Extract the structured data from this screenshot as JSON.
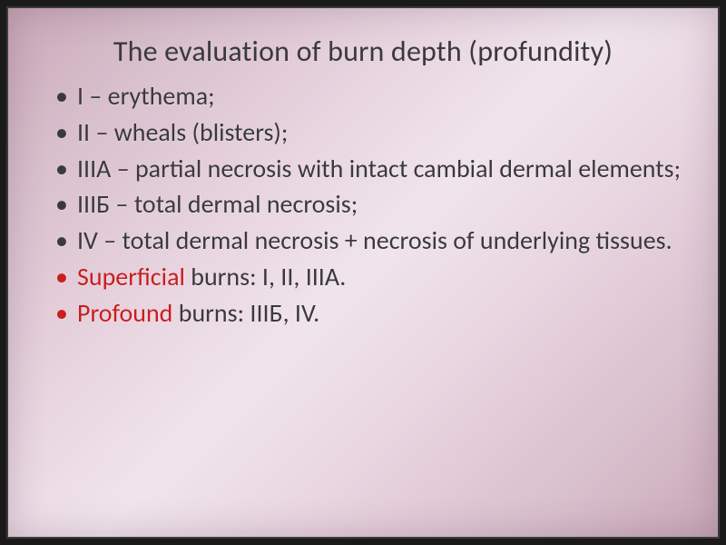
{
  "slide": {
    "title": "The evaluation of burn depth (profundity)",
    "background_gradient": [
      "#c8a8b8",
      "#d8bfcc",
      "#e8d5e0",
      "#f0e4ec",
      "#e8d5e0",
      "#d8bfcc",
      "#c8a8b8"
    ],
    "frame_color": "#1a1a1a",
    "title_fontsize": 32,
    "title_color": "#3a3a3a",
    "body_fontsize": 28,
    "body_color": "#3a3a3a",
    "accent_color": "#c81e1e",
    "bullets": [
      {
        "text": "I – erythema;",
        "bullet_color": "#3a3a3a",
        "spans": [
          {
            "text": "I – erythema;",
            "color": "#3a3a3a"
          }
        ]
      },
      {
        "text": "II – wheals (blisters);",
        "bullet_color": "#3a3a3a",
        "spans": [
          {
            "text": "II – wheals (blisters);",
            "color": "#3a3a3a"
          }
        ]
      },
      {
        "text": "IIIА – partial necrosis with intact cambial dermal elements;",
        "bullet_color": "#3a3a3a",
        "spans": [
          {
            "text": "IIIА – partial necrosis with intact cambial dermal elements;",
            "color": "#3a3a3a"
          }
        ]
      },
      {
        "text": "IIIБ – total dermal necrosis;",
        "bullet_color": "#3a3a3a",
        "spans": [
          {
            "text": "IIIБ – total dermal necrosis;",
            "color": "#3a3a3a"
          }
        ]
      },
      {
        "text": "IV – total dermal necrosis + necrosis of underlying tissues.",
        "bullet_color": "#3a3a3a",
        "spans": [
          {
            "text": "IV – total dermal necrosis + necrosis of underlying tissues.",
            "color": "#3a3a3a"
          }
        ]
      },
      {
        "text": "Superficial burns: I, II, IIIA.",
        "bullet_color": "#c81e1e",
        "spans": [
          {
            "text": "Superficial ",
            "color": "#c81e1e"
          },
          {
            "text": "burns: I, II, IIIA.",
            "color": "#3a3a3a"
          }
        ]
      },
      {
        "text": "Profound burns: IIIБ, IV.",
        "bullet_color": "#c81e1e",
        "spans": [
          {
            "text": "Profound ",
            "color": "#c81e1e"
          },
          {
            "text": "burns: IIIБ, IV.",
            "color": "#3a3a3a"
          }
        ]
      }
    ]
  }
}
